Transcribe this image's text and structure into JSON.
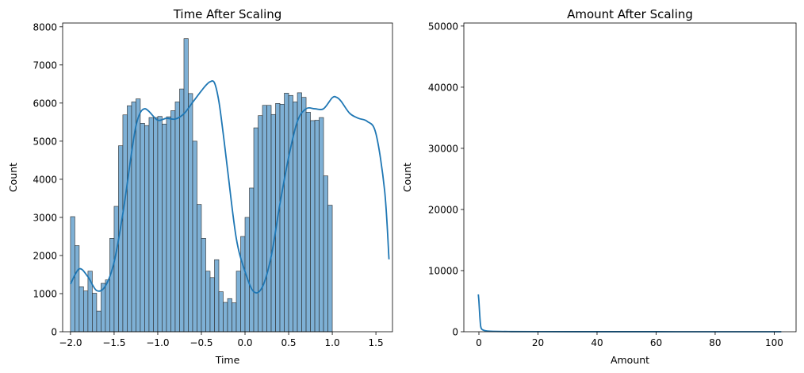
{
  "chart_data": [
    {
      "type": "histogram",
      "title": "Time After Scaling",
      "xlabel": "Time",
      "ylabel": "Count",
      "xlim": [
        -2.09,
        1.69
      ],
      "ylim": [
        0,
        8100
      ],
      "xticks": [
        -2.0,
        -1.5,
        -1.0,
        -0.5,
        0.0,
        0.5,
        1.0,
        1.5
      ],
      "xtick_labels": [
        "−2.0",
        "−1.5",
        "−1.0",
        "−0.5",
        "0.0",
        "0.5",
        "1.0",
        "1.5"
      ],
      "yticks": [
        0,
        1000,
        2000,
        3000,
        4000,
        5000,
        6000,
        7000,
        8000
      ],
      "ytick_labels": [
        "0",
        "1000",
        "2000",
        "3000",
        "4000",
        "5000",
        "6000",
        "7000",
        "8000"
      ],
      "bin_start": -2.0,
      "bin_width": 0.05,
      "counts": [
        3020,
        2260,
        1180,
        1070,
        1590,
        1010,
        540,
        1270,
        1360,
        2450,
        3290,
        4880,
        5690,
        5930,
        6030,
        6110,
        5470,
        5410,
        5620,
        5620,
        5650,
        5450,
        5640,
        5800,
        6030,
        6370,
        7690,
        6250,
        5000,
        3340,
        2450,
        1590,
        1420,
        1890,
        1050,
        770,
        870,
        760,
        1590,
        2500,
        3000,
        3770,
        5350,
        5670,
        5940,
        5940,
        5700,
        5990,
        5970,
        6260,
        6200,
        6030,
        6270,
        6150,
        5760,
        5540,
        5550,
        5620,
        4090,
        3320
      ],
      "kde": {
        "x": [
          -2.0,
          -1.9,
          -1.8,
          -1.7,
          -1.6,
          -1.5,
          -1.4,
          -1.3,
          -1.25,
          -1.2,
          -1.15,
          -1.1,
          -1.0,
          -0.9,
          -0.8,
          -0.7,
          -0.6,
          -0.5,
          -0.45,
          -0.4,
          -0.35,
          -0.3,
          -0.25,
          -0.2,
          -0.1,
          0.0,
          0.1,
          0.2,
          0.3,
          0.4,
          0.5,
          0.6,
          0.7,
          0.8,
          0.9,
          1.0,
          1.05,
          1.1,
          1.2,
          1.3,
          1.4,
          1.5,
          1.6,
          1.65
        ],
        "y": [
          1250,
          1650,
          1440,
          1080,
          1200,
          1830,
          3100,
          4700,
          5400,
          5750,
          5850,
          5780,
          5550,
          5600,
          5580,
          5720,
          6020,
          6320,
          6460,
          6560,
          6530,
          6050,
          5200,
          4250,
          2450,
          1580,
          1050,
          1180,
          1980,
          3350,
          4580,
          5520,
          5850,
          5850,
          5850,
          6140,
          6150,
          6050,
          5730,
          5600,
          5520,
          5200,
          3700,
          1900
        ]
      },
      "bar_color": "#7EB0D5",
      "line_color": "#1F77B4"
    },
    {
      "type": "histogram",
      "title": "Amount After Scaling",
      "xlabel": "Amount",
      "ylabel": "Count",
      "xlim": [
        -5.1,
        107.4
      ],
      "ylim": [
        0,
        50500
      ],
      "xticks": [
        0,
        20,
        40,
        60,
        80,
        100
      ],
      "xtick_labels": [
        "0",
        "20",
        "40",
        "60",
        "80",
        "100"
      ],
      "yticks": [
        0,
        10000,
        20000,
        30000,
        40000,
        50000
      ],
      "ytick_labels": [
        "0",
        "10000",
        "20000",
        "30000",
        "40000",
        "50000"
      ],
      "kde": {
        "x": [
          -0.2,
          0.0,
          0.3,
          0.6,
          1.0,
          2.0,
          4.0,
          10.0,
          20.0,
          40.0,
          60.0,
          80.0,
          102.4
        ],
        "y": [
          6100,
          5000,
          2600,
          900,
          400,
          180,
          80,
          30,
          15,
          8,
          5,
          3,
          2
        ]
      },
      "line_color": "#1F77B4"
    }
  ]
}
